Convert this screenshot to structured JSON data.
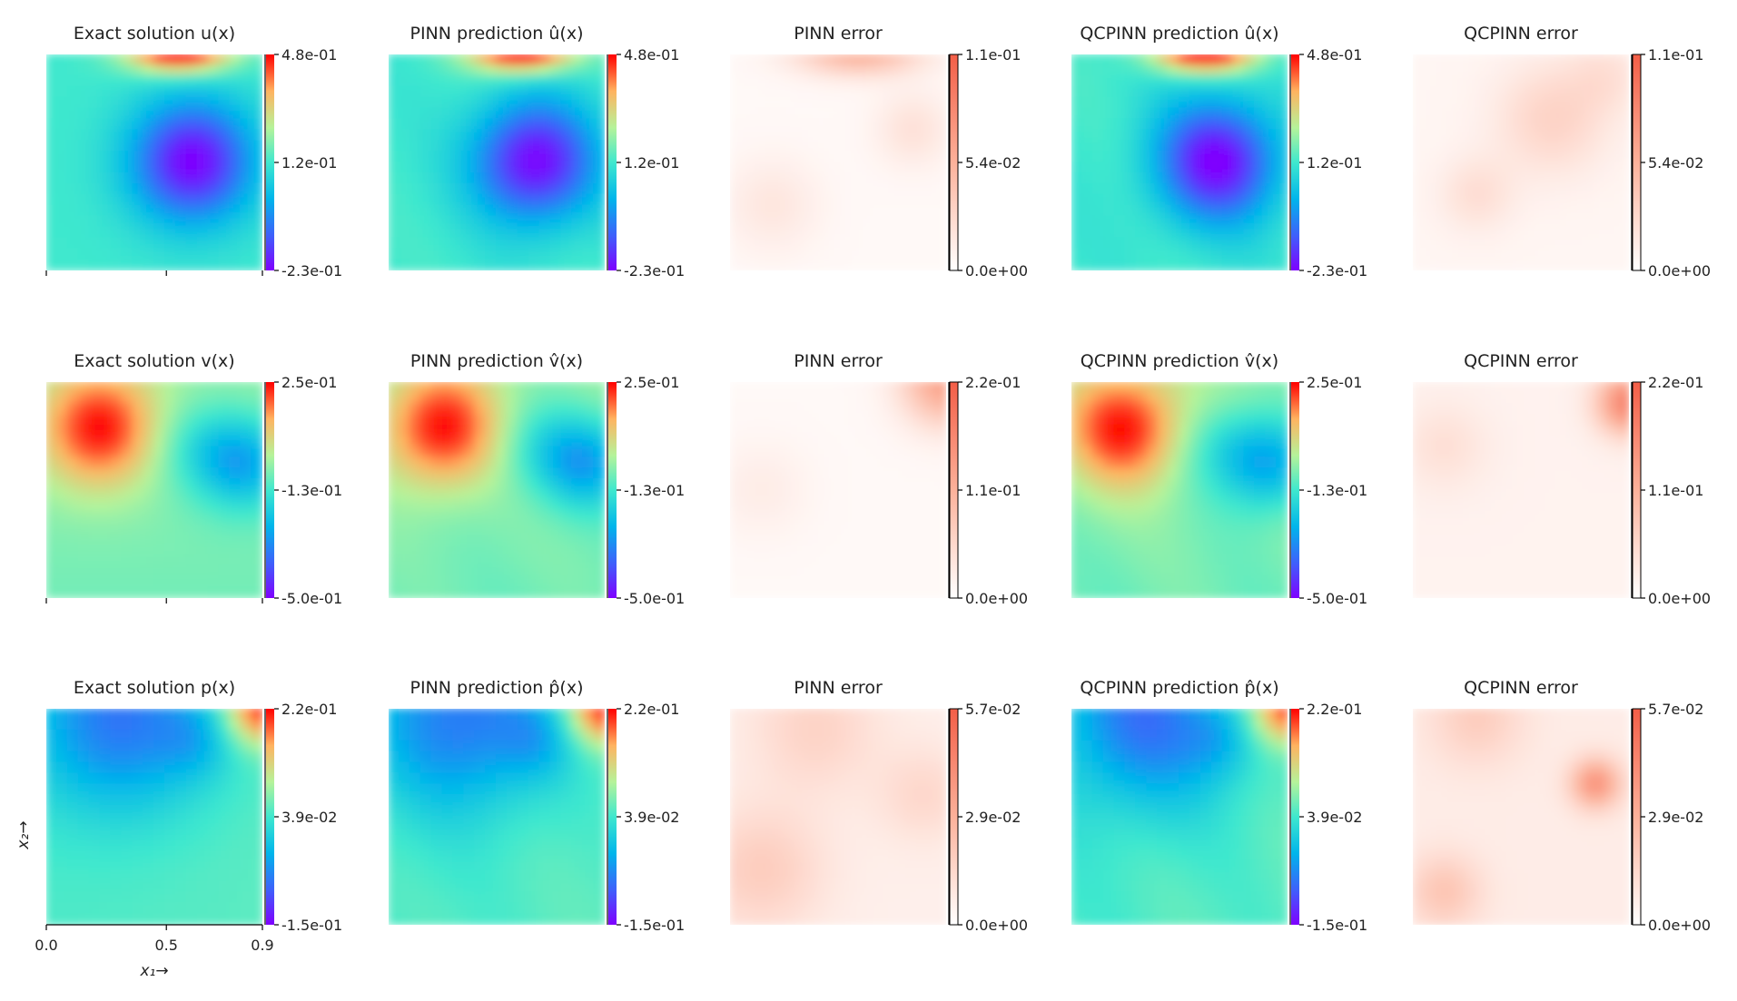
{
  "chart_data": {
    "type": "heatmap",
    "description_rows": [
      "u",
      "v",
      "p"
    ],
    "x_axis": {
      "label": "x₁→",
      "ticks": [
        "0.0",
        "0.5",
        "0.9"
      ],
      "range": [
        0.0,
        0.9
      ]
    },
    "y_axis": {
      "label": "x₂→",
      "range": [
        0.0,
        0.9
      ]
    },
    "colormaps": {
      "solution": "rainbow",
      "error": "reds"
    },
    "rows": [
      {
        "variable": "u",
        "panels": [
          {
            "kind": "exact",
            "title": "Exact solution u(x)",
            "colorbar": [
              "4.8e-01",
              "1.2e-01",
              "-2.3e-01"
            ],
            "vmin": -0.23,
            "vmax": 0.48
          },
          {
            "kind": "pinn",
            "title": "PINN prediction û(x)",
            "colorbar": [
              "4.8e-01",
              "1.2e-01",
              "-2.3e-01"
            ],
            "vmin": -0.23,
            "vmax": 0.48
          },
          {
            "kind": "pinn_err",
            "title": "PINN error",
            "colorbar": [
              "1.1e-01",
              "5.4e-02",
              "0.0e+00"
            ],
            "vmin": 0.0,
            "vmax": 0.11
          },
          {
            "kind": "qcpinn",
            "title": "QCPINN prediction û(x)",
            "colorbar": [
              "4.8e-01",
              "1.2e-01",
              "-2.3e-01"
            ],
            "vmin": -0.23,
            "vmax": 0.48
          },
          {
            "kind": "qcpinn_err",
            "title": "QCPINN error",
            "colorbar": [
              "1.1e-01",
              "5.4e-02",
              "0.0e+00"
            ],
            "vmin": 0.0,
            "vmax": 0.11
          }
        ]
      },
      {
        "variable": "v",
        "panels": [
          {
            "kind": "exact",
            "title": "Exact solution v(x)",
            "colorbar": [
              "2.5e-01",
              "-1.3e-01",
              "-5.0e-01"
            ],
            "vmin": -0.5,
            "vmax": 0.25
          },
          {
            "kind": "pinn",
            "title": "PINN prediction v̂(x)",
            "colorbar": [
              "2.5e-01",
              "-1.3e-01",
              "-5.0e-01"
            ],
            "vmin": -0.5,
            "vmax": 0.25
          },
          {
            "kind": "pinn_err",
            "title": "PINN error",
            "colorbar": [
              "2.2e-01",
              "1.1e-01",
              "0.0e+00"
            ],
            "vmin": 0.0,
            "vmax": 0.22
          },
          {
            "kind": "qcpinn",
            "title": "QCPINN prediction v̂(x)",
            "colorbar": [
              "2.5e-01",
              "-1.3e-01",
              "-5.0e-01"
            ],
            "vmin": -0.5,
            "vmax": 0.25
          },
          {
            "kind": "qcpinn_err",
            "title": "QCPINN error",
            "colorbar": [
              "2.2e-01",
              "1.1e-01",
              "0.0e+00"
            ],
            "vmin": 0.0,
            "vmax": 0.22
          }
        ]
      },
      {
        "variable": "p",
        "panels": [
          {
            "kind": "exact",
            "title": "Exact solution p(x)",
            "colorbar": [
              "2.2e-01",
              "3.9e-02",
              "-1.5e-01"
            ],
            "vmin": -0.15,
            "vmax": 0.22
          },
          {
            "kind": "pinn",
            "title": "PINN prediction p̂(x)",
            "colorbar": [
              "2.2e-01",
              "3.9e-02",
              "-1.5e-01"
            ],
            "vmin": -0.15,
            "vmax": 0.22
          },
          {
            "kind": "pinn_err",
            "title": "PINN error",
            "colorbar": [
              "5.7e-02",
              "2.9e-02",
              "0.0e+00"
            ],
            "vmin": 0.0,
            "vmax": 0.057
          },
          {
            "kind": "qcpinn",
            "title": "QCPINN prediction p̂(x)",
            "colorbar": [
              "2.2e-01",
              "3.9e-02",
              "-1.5e-01"
            ],
            "vmin": -0.15,
            "vmax": 0.22
          },
          {
            "kind": "qcpinn_err",
            "title": "QCPINN error",
            "colorbar": [
              "5.7e-02",
              "2.9e-02",
              "0.0e+00"
            ],
            "vmin": 0.0,
            "vmax": 0.057
          }
        ]
      }
    ]
  }
}
